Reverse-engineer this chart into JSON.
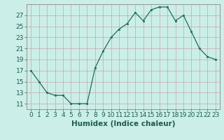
{
  "x": [
    0,
    1,
    2,
    3,
    4,
    5,
    6,
    7,
    8,
    9,
    10,
    11,
    12,
    13,
    14,
    15,
    16,
    17,
    18,
    19,
    20,
    21,
    22,
    23
  ],
  "y": [
    17,
    15,
    13,
    12.5,
    12.5,
    11,
    11,
    11,
    17.5,
    20.5,
    23,
    24.5,
    25.5,
    27.5,
    26,
    28,
    28.5,
    28.5,
    26,
    27,
    24,
    21,
    19.5,
    19
  ],
  "line_color": "#1f6b5e",
  "marker_color": "#1f6b5e",
  "bg_color": "#cceee8",
  "grid_color": "#b0ddd6",
  "xlabel": "Humidex (Indice chaleur)",
  "ylabel_ticks": [
    11,
    13,
    15,
    17,
    19,
    21,
    23,
    25,
    27
  ],
  "xlim": [
    -0.5,
    23.5
  ],
  "ylim": [
    10.0,
    29.0
  ],
  "xlabel_fontsize": 7.5,
  "tick_fontsize": 6.5
}
